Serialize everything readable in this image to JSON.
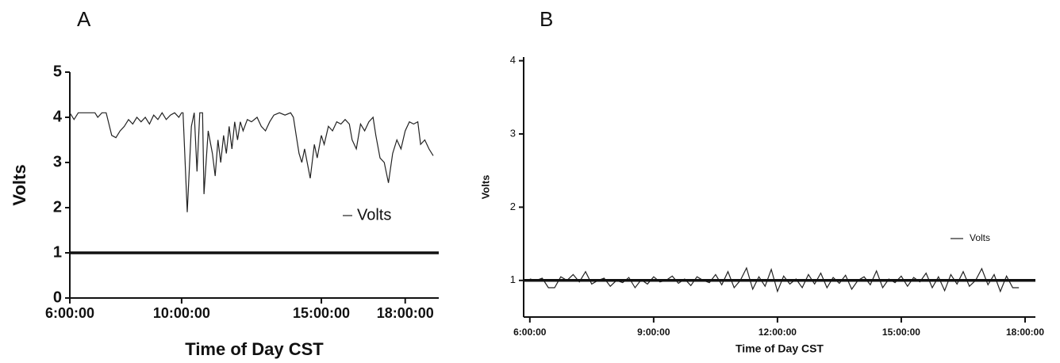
{
  "chart_data": [
    {
      "type": "line",
      "title": "A",
      "x_label": "Time of Day CST",
      "y_label": "Volts",
      "xlim": [
        6,
        19.2
      ],
      "xticks": [
        {
          "value": 6,
          "label": "6:00:00"
        },
        {
          "value": 10,
          "label": "10:00:00"
        },
        {
          "value": 15,
          "label": "15:00:00"
        },
        {
          "value": 18,
          "label": "18:00:00"
        }
      ],
      "ylim": [
        0,
        5
      ],
      "yticks": [
        0,
        1,
        2,
        3,
        4,
        5
      ],
      "reference_line": 1,
      "x": [
        6.0,
        6.15,
        6.3,
        6.6,
        6.9,
        7.0,
        7.15,
        7.3,
        7.4,
        7.5,
        7.65,
        7.8,
        7.95,
        8.1,
        8.25,
        8.4,
        8.55,
        8.7,
        8.85,
        9.0,
        9.15,
        9.3,
        9.45,
        9.6,
        9.75,
        9.9,
        10.0,
        10.05,
        10.2,
        10.35,
        10.45,
        10.55,
        10.65,
        10.75,
        10.8,
        10.95,
        11.1,
        11.2,
        11.3,
        11.4,
        11.5,
        11.6,
        11.7,
        11.8,
        11.9,
        12.0,
        12.1,
        12.2,
        12.35,
        12.5,
        12.7,
        12.85,
        13.0,
        13.15,
        13.3,
        13.5,
        13.7,
        13.9,
        14.0,
        14.1,
        14.2,
        14.3,
        14.4,
        14.6,
        14.75,
        14.85,
        15.0,
        15.1,
        15.25,
        15.4,
        15.55,
        15.7,
        15.85,
        16.0,
        16.1,
        16.25,
        16.4,
        16.55,
        16.7,
        16.85,
        16.95,
        17.1,
        17.25,
        17.4,
        17.55,
        17.7,
        17.85,
        18.0,
        18.15,
        18.3,
        18.45,
        18.55,
        18.7,
        18.85,
        19.0
      ],
      "series": [
        {
          "name": "Volts",
          "color": "#222222",
          "values": [
            4.1,
            3.95,
            4.1,
            4.1,
            4.1,
            4.0,
            4.1,
            4.1,
            3.85,
            3.6,
            3.55,
            3.7,
            3.8,
            3.95,
            3.85,
            4.0,
            3.9,
            4.0,
            3.85,
            4.05,
            3.95,
            4.1,
            3.95,
            4.05,
            4.1,
            4.0,
            4.1,
            4.1,
            1.9,
            3.8,
            4.1,
            2.8,
            4.1,
            4.1,
            2.3,
            3.7,
            3.2,
            2.7,
            3.5,
            3.0,
            3.6,
            3.2,
            3.8,
            3.3,
            3.9,
            3.5,
            3.9,
            3.7,
            3.95,
            3.9,
            4.0,
            3.8,
            3.7,
            3.9,
            4.05,
            4.1,
            4.05,
            4.1,
            4.0,
            3.6,
            3.2,
            3.0,
            3.3,
            2.65,
            3.4,
            3.1,
            3.6,
            3.4,
            3.8,
            3.7,
            3.9,
            3.85,
            3.95,
            3.85,
            3.5,
            3.3,
            3.85,
            3.7,
            3.9,
            4.0,
            3.6,
            3.1,
            3.0,
            2.55,
            3.2,
            3.5,
            3.3,
            3.7,
            3.9,
            3.85,
            3.9,
            3.4,
            3.5,
            3.3,
            3.15
          ]
        }
      ]
    },
    {
      "type": "line",
      "title": "B",
      "x_label": "Time of Day CST",
      "y_label": "Volts",
      "xlim": [
        5.85,
        18.25
      ],
      "xticks": [
        {
          "value": 6,
          "label": "6:00:00"
        },
        {
          "value": 9,
          "label": "9:00:00"
        },
        {
          "value": 12,
          "label": "12:00:00"
        },
        {
          "value": 15,
          "label": "15:00:00"
        },
        {
          "value": 18,
          "label": "18:00:00"
        }
      ],
      "ylim": [
        0.5,
        4.05
      ],
      "yticks": [
        1,
        2,
        3,
        4
      ],
      "reference_line": 1,
      "x": [
        6.0,
        6.15,
        6.3,
        6.45,
        6.6,
        6.75,
        6.9,
        7.05,
        7.2,
        7.35,
        7.5,
        7.65,
        7.8,
        7.95,
        8.1,
        8.25,
        8.4,
        8.55,
        8.7,
        8.85,
        9.0,
        9.15,
        9.3,
        9.45,
        9.6,
        9.75,
        9.9,
        10.05,
        10.2,
        10.35,
        10.5,
        10.65,
        10.8,
        10.95,
        11.1,
        11.25,
        11.4,
        11.55,
        11.7,
        11.85,
        12.0,
        12.15,
        12.3,
        12.45,
        12.6,
        12.75,
        12.9,
        13.05,
        13.2,
        13.35,
        13.5,
        13.65,
        13.8,
        13.95,
        14.1,
        14.25,
        14.4,
        14.55,
        14.7,
        14.85,
        15.0,
        15.15,
        15.3,
        15.45,
        15.6,
        15.75,
        15.9,
        16.05,
        16.2,
        16.35,
        16.5,
        16.65,
        16.8,
        16.95,
        17.1,
        17.25,
        17.4,
        17.55,
        17.7,
        17.85
      ],
      "series": [
        {
          "name": "Volts",
          "color": "#222222",
          "values": [
            1.02,
            1.0,
            1.03,
            0.9,
            0.9,
            1.05,
            1.0,
            1.08,
            0.98,
            1.12,
            0.95,
            1.0,
            1.03,
            0.92,
            1.0,
            0.97,
            1.04,
            0.9,
            1.01,
            0.95,
            1.05,
            0.98,
            1.0,
            1.06,
            0.96,
            1.02,
            0.93,
            1.05,
            1.0,
            0.97,
            1.08,
            0.94,
            1.12,
            0.9,
            1.0,
            1.17,
            0.88,
            1.05,
            0.92,
            1.15,
            0.85,
            1.06,
            0.95,
            1.02,
            0.9,
            1.08,
            0.95,
            1.1,
            0.9,
            1.04,
            0.96,
            1.07,
            0.88,
            1.0,
            1.05,
            0.94,
            1.13,
            0.9,
            1.02,
            0.97,
            1.06,
            0.92,
            1.04,
            0.98,
            1.1,
            0.9,
            1.05,
            0.86,
            1.08,
            0.95,
            1.12,
            0.92,
            1.0,
            1.16,
            0.94,
            1.08,
            0.85,
            1.06,
            0.9,
            0.9
          ]
        }
      ]
    }
  ]
}
